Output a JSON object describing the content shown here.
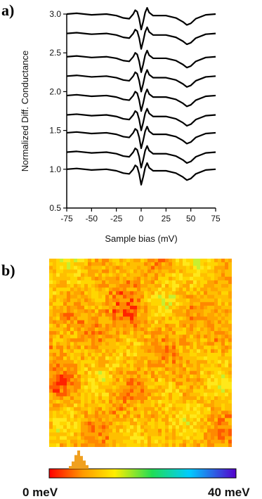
{
  "panel_a": {
    "label": "a)"
  },
  "panel_b": {
    "label": "b)",
    "colorbar": {
      "min_label": "0 meV",
      "max_label": "40 meV"
    }
  },
  "chart_data": [
    {
      "type": "line",
      "xlabel": "Sample bias (mV)",
      "ylabel": "Normalized Diff. Conductance",
      "xlim": [
        -75,
        75
      ],
      "ylim": [
        0.5,
        3.0
      ],
      "xticks": [
        "-75",
        "-50",
        "-25",
        "0",
        "25",
        "50",
        "75"
      ],
      "yticks": [
        "0.5",
        "1.0",
        "1.5",
        "2.0",
        "2.5",
        "3.0"
      ],
      "x": [
        -75,
        -65,
        -50,
        -35,
        -25,
        -18,
        -12,
        -8,
        -6,
        -4,
        -2,
        0,
        2,
        4,
        6,
        8,
        12,
        18,
        25,
        35,
        42,
        46,
        50,
        55,
        65,
        75
      ],
      "curve_shape": [
        0,
        0.01,
        -0.01,
        0,
        -0.02,
        -0.05,
        -0.06,
        0,
        0.05,
        0.03,
        -0.06,
        -0.2,
        -0.1,
        0.02,
        0.08,
        0.02,
        -0.02,
        -0.02,
        -0.02,
        -0.05,
        -0.1,
        -0.14,
        -0.12,
        -0.06,
        -0.01,
        0
      ],
      "offsets": [
        3.0,
        2.75,
        2.45,
        2.2,
        1.95,
        1.7,
        1.47,
        1.22,
        1.0
      ],
      "grid": false
    },
    {
      "type": "heatmap",
      "colorbar_range_meV": [
        0,
        40
      ],
      "colors": {
        "low": "#ff0000",
        "mid_low": "#ff9900",
        "mid": "#ffee00",
        "mid_high": "#00dd55",
        "high_cyan": "#00ccff",
        "top": "#5500cc"
      },
      "histogram_relative_counts": [
        0.15,
        0.4,
        0.75,
        1.0,
        0.7,
        0.45,
        0.2
      ]
    }
  ]
}
